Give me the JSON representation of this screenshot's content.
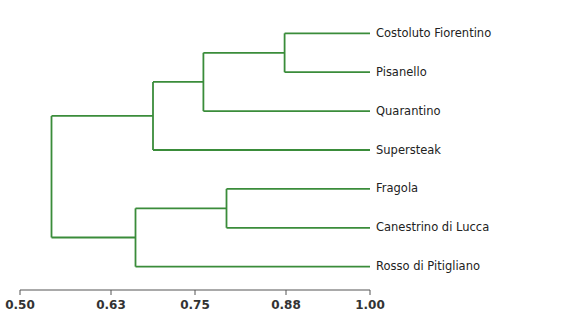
{
  "chart_data": {
    "type": "dendrogram",
    "categories": [
      "Costoluto Fiorentino",
      "Pisanello",
      "Quarantino",
      "Supersteak",
      "Fragola",
      "Canestrino di Lucca",
      "Rosso di Pitigliano"
    ],
    "merges": [
      {
        "children": [
          0,
          1
        ],
        "value": 0.878
      },
      {
        "children": [
          7,
          2
        ],
        "value": 0.762
      },
      {
        "children": [
          8,
          3
        ],
        "value": 0.69
      },
      {
        "children": [
          4,
          5
        ],
        "value": 0.795
      },
      {
        "children": [
          10,
          6
        ],
        "value": 0.665
      },
      {
        "children": [
          9,
          11
        ],
        "value": 0.545
      }
    ],
    "color": "#3a8c3a",
    "xlim": [
      0.5,
      1.0
    ],
    "xticks": [
      {
        "value": 0.5,
        "label": "0.50"
      },
      0.63,
      0.75,
      0.88,
      {
        "value": 1.0,
        "label": "1.00"
      }
    ]
  }
}
